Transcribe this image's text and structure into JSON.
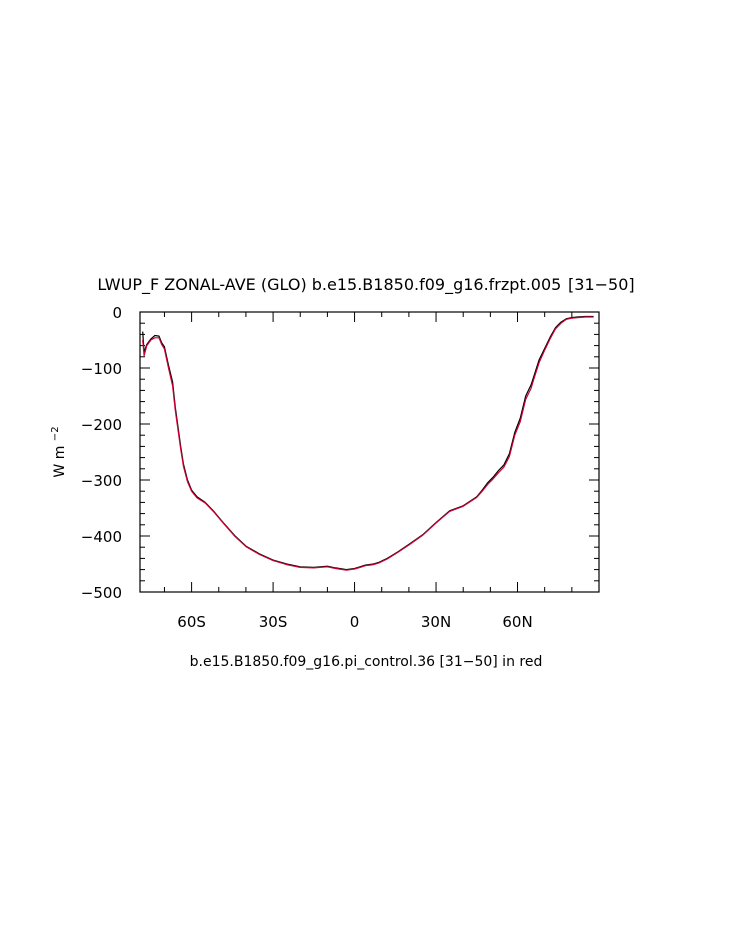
{
  "chart_data": {
    "type": "line",
    "title": "LWUP_F ZONAL-AVE (GLO) b.e15.B1850.f09_g16.frzpt.005  [31−50]",
    "subtitle": "b.e15.B1850.f09_g16.pi_control.36 [31−50] in red",
    "xlabel": "",
    "ylabel": "W m",
    "ylabel_superscript": "−2",
    "xlim": [
      -79,
      90
    ],
    "ylim": [
      -500,
      0
    ],
    "x_ticks": [
      -60,
      -30,
      0,
      30,
      60
    ],
    "x_tick_labels": [
      "60S",
      "30S",
      "0",
      "30N",
      "60N"
    ],
    "y_ticks": [
      0,
      -100,
      -200,
      -300,
      -400,
      -500
    ],
    "y_tick_labels": [
      "0",
      "−100",
      "−200",
      "−300",
      "−400",
      "−500"
    ],
    "grid": false,
    "series": [
      {
        "color": "#000000",
        "x": [
          -78,
          -77.5,
          -76.5,
          -75,
          -73.5,
          -72,
          -71,
          -70,
          -68.5,
          -67,
          -66,
          -64,
          -63,
          -61.5,
          -60,
          -58,
          -55,
          -52,
          -48,
          -44,
          -40,
          -35,
          -30,
          -25,
          -20,
          -15,
          -10,
          -7,
          -3,
          0,
          2,
          4,
          7,
          9,
          12,
          16,
          20,
          25,
          30,
          35,
          40,
          45,
          47,
          49,
          51,
          53,
          55,
          57,
          59,
          61,
          63,
          65,
          66,
          68,
          70,
          72,
          74,
          76,
          78,
          80,
          82,
          85,
          88
        ],
        "y": [
          -35,
          -72,
          -58,
          -48,
          -42,
          -43,
          -55,
          -62,
          -95,
          -125,
          -170,
          -240,
          -272,
          -300,
          -318,
          -330,
          -340,
          -355,
          -378,
          -400,
          -418,
          -432,
          -443,
          -450,
          -455,
          -456,
          -454,
          -457,
          -460,
          -458,
          -455,
          -452,
          -450,
          -447,
          -440,
          -428,
          -415,
          -398,
          -376,
          -355,
          -346,
          -330,
          -318,
          -305,
          -295,
          -283,
          -273,
          -253,
          -215,
          -190,
          -150,
          -130,
          -115,
          -85,
          -65,
          -45,
          -28,
          -18,
          -12,
          -10,
          -9,
          -8,
          -8
        ]
      },
      {
        "color": "#cc0033",
        "x": [
          -78,
          -77.5,
          -76.5,
          -75,
          -73.5,
          -72,
          -71,
          -70,
          -68.5,
          -67,
          -66,
          -64,
          -63,
          -61.5,
          -60,
          -58,
          -55,
          -52,
          -48,
          -44,
          -40,
          -35,
          -30,
          -25,
          -20,
          -15,
          -10,
          -7,
          -3,
          0,
          2,
          4,
          7,
          9,
          12,
          16,
          20,
          25,
          30,
          35,
          40,
          45,
          47,
          49,
          51,
          53,
          55,
          57,
          59,
          61,
          63,
          65,
          66,
          68,
          70,
          72,
          74,
          76,
          78,
          80,
          82,
          85,
          88
        ],
        "y": [
          -50,
          -78,
          -60,
          -50,
          -46,
          -46,
          -58,
          -66,
          -100,
          -132,
          -176,
          -245,
          -276,
          -303,
          -320,
          -332,
          -341,
          -356,
          -379,
          -401,
          -419,
          -433,
          -444,
          -451,
          -456,
          -457,
          -455,
          -458,
          -461,
          -459,
          -456,
          -453,
          -451,
          -448,
          -441,
          -429,
          -416,
          -399,
          -377,
          -356,
          -347,
          -331,
          -320,
          -308,
          -298,
          -287,
          -277,
          -258,
          -220,
          -196,
          -156,
          -136,
          -120,
          -90,
          -68,
          -48,
          -30,
          -20,
          -13,
          -11,
          -10,
          -9,
          -9
        ]
      }
    ]
  }
}
